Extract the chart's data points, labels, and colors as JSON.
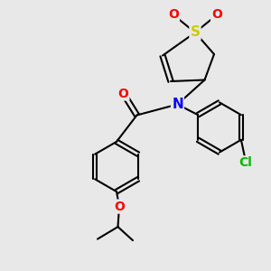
{
  "background_color": "#e8e8e8",
  "bond_color": "#000000",
  "bond_width": 1.5,
  "atom_colors": {
    "S": "#cccc00",
    "O": "#ff0000",
    "N": "#0000ff",
    "Cl": "#00bb00"
  },
  "figsize": [
    3.0,
    3.0
  ],
  "dpi": 100
}
